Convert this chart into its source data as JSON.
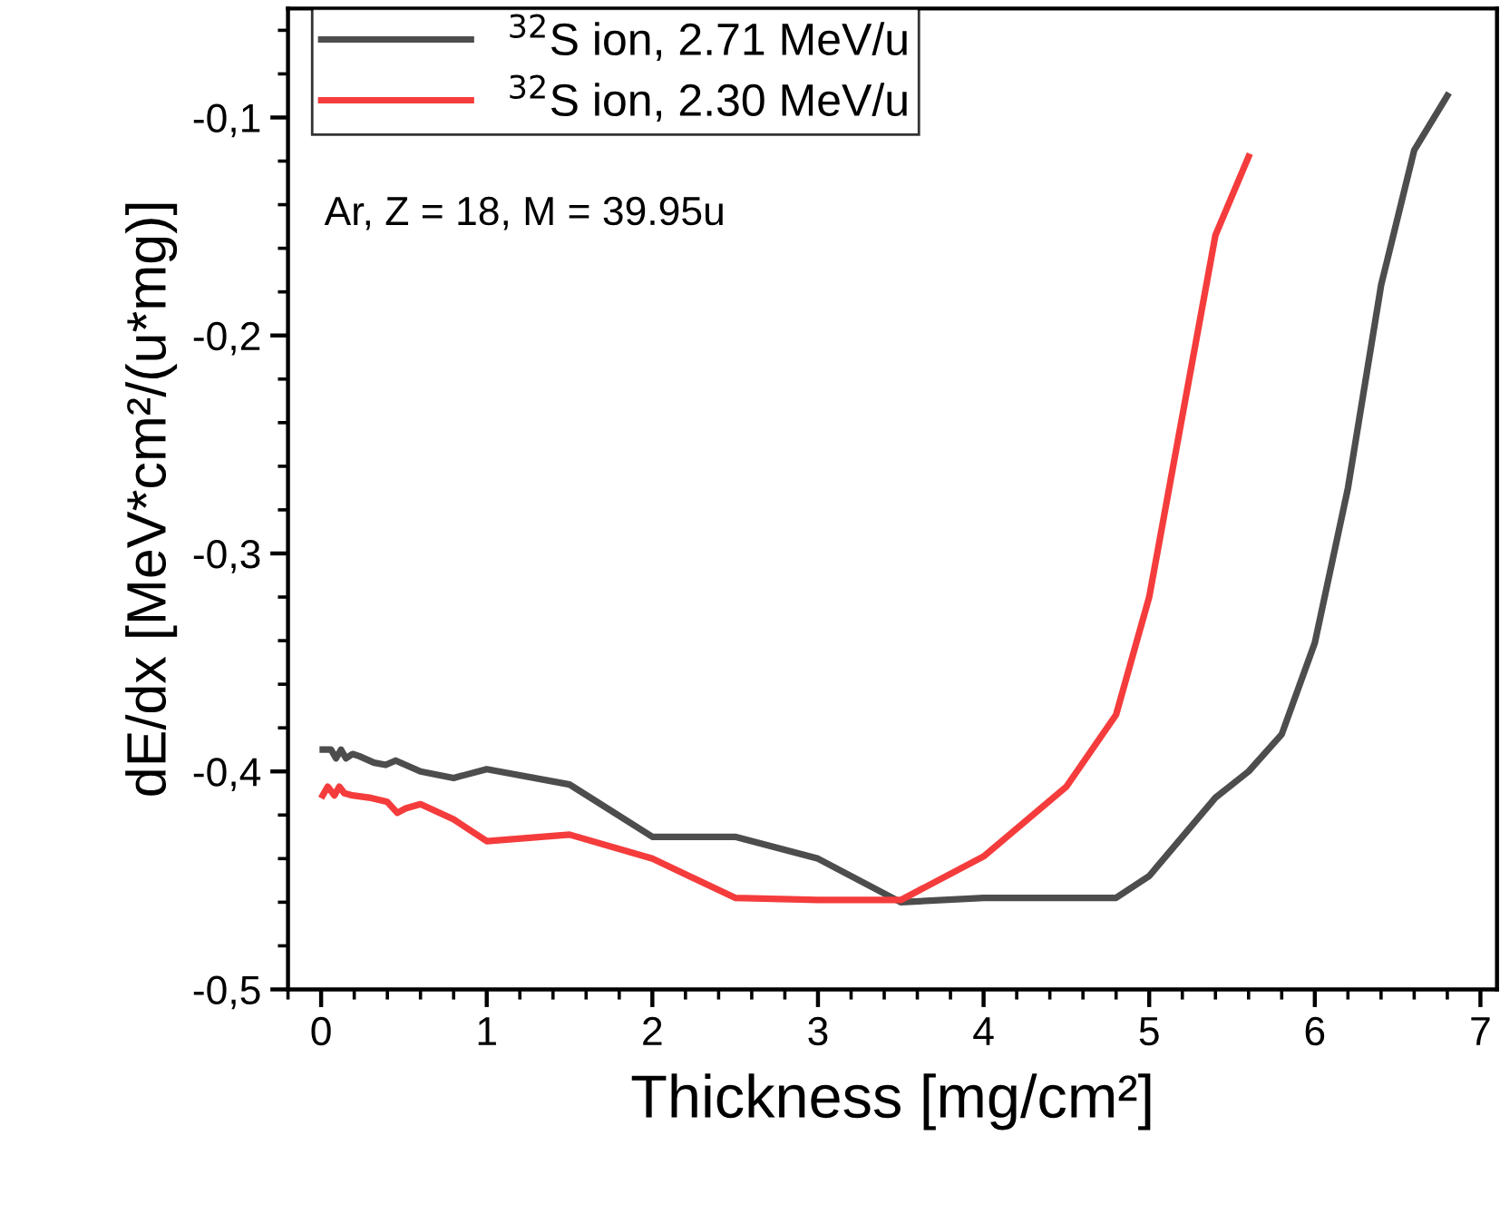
{
  "chart_data": {
    "type": "line",
    "xlabel": "Thickness [mg/cm²]",
    "ylabel": "dE/dx [MeV*cm²/(u*mg)]",
    "xlim": [
      -0.2,
      7.1
    ],
    "xticks": [
      0,
      1,
      2,
      3,
      4,
      5,
      6,
      7
    ],
    "ylim": [
      -0.5,
      -0.05
    ],
    "yticks": [
      {
        "value": -0.5,
        "label": "-0,5"
      },
      {
        "value": -0.4,
        "label": "-0,4"
      },
      {
        "value": -0.3,
        "label": "-0,3"
      },
      {
        "value": -0.2,
        "label": "-0,2"
      },
      {
        "value": -0.1,
        "label": "-0,1"
      }
    ],
    "grid": false,
    "legend": "top left",
    "line_style": "solid",
    "marker": "none",
    "annotations": [
      "Ar, Z = 18, M = 39.95u"
    ],
    "series": [
      {
        "name": "$^{32}$S ion, 2.71 MeV/u",
        "color": "#4d4d4d",
        "x": [
          0.01,
          0.06,
          0.09,
          0.12,
          0.15,
          0.19,
          0.23,
          0.32,
          0.39,
          0.45,
          0.6,
          0.8,
          1.0,
          1.5,
          2.0,
          2.5,
          3.0,
          3.5,
          4.0,
          4.8,
          5.0,
          5.4,
          5.6,
          5.8,
          6.0,
          6.2,
          6.4,
          6.6,
          6.8
        ],
        "values": [
          -0.39,
          -0.39,
          -0.394,
          -0.39,
          -0.394,
          -0.392,
          -0.393,
          -0.396,
          -0.397,
          -0.395,
          -0.4,
          -0.403,
          -0.399,
          -0.406,
          -0.43,
          -0.43,
          -0.44,
          -0.46,
          -0.458,
          -0.458,
          -0.448,
          -0.412,
          -0.4,
          -0.383,
          -0.341,
          -0.27,
          -0.177,
          -0.115,
          -0.09
        ]
      },
      {
        "name": "$^{32}$S ion, 2.30 MeV/u",
        "color": "#f53c3c",
        "x": [
          0.01,
          0.04,
          0.08,
          0.11,
          0.14,
          0.19,
          0.29,
          0.4,
          0.46,
          0.51,
          0.6,
          0.8,
          1.0,
          1.5,
          2.0,
          2.5,
          3.0,
          3.5,
          4.0,
          4.5,
          4.8,
          5.0,
          5.4,
          5.6
        ],
        "values": [
          -0.411,
          -0.407,
          -0.411,
          -0.407,
          -0.41,
          -0.411,
          -0.412,
          -0.414,
          -0.419,
          -0.417,
          -0.415,
          -0.422,
          -0.432,
          -0.429,
          -0.44,
          -0.458,
          -0.459,
          -0.459,
          -0.439,
          -0.407,
          -0.374,
          -0.32,
          -0.154,
          -0.118
        ]
      }
    ]
  }
}
